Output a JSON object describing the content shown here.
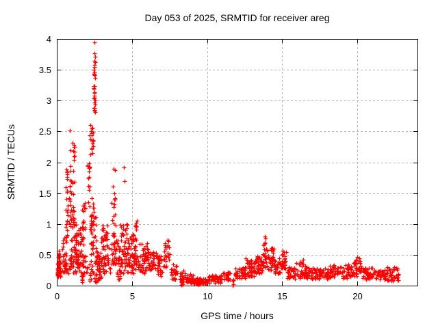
{
  "chart_data": {
    "type": "scatter",
    "title": "Day 053 of 2025, SRMTID for receiver areg",
    "xlabel": "GPS time / hours",
    "ylabel": "SRMTID / TECUs",
    "xlim": [
      0,
      24
    ],
    "ylim": [
      0,
      4
    ],
    "xticks": [
      {
        "v": 0,
        "label": "0"
      },
      {
        "v": 5,
        "label": "5"
      },
      {
        "v": 10,
        "label": "10"
      },
      {
        "v": 15,
        "label": "15"
      },
      {
        "v": 20,
        "label": "20"
      }
    ],
    "yticks": [
      {
        "v": 0,
        "label": "0"
      },
      {
        "v": 0.5,
        "label": "0.5"
      },
      {
        "v": 1,
        "label": "1"
      },
      {
        "v": 1.5,
        "label": "1.5"
      },
      {
        "v": 2,
        "label": "2"
      },
      {
        "v": 2.5,
        "label": "2.5"
      },
      {
        "v": 3,
        "label": "3"
      },
      {
        "v": 3.5,
        "label": "3.5"
      },
      {
        "v": 4,
        "label": "4"
      }
    ],
    "grid": true,
    "legend": false,
    "marker": {
      "shape": "plus",
      "color": "#ff0000",
      "size": 7
    },
    "colors": {
      "points": "#ff0000",
      "grid": "#b4b4b4",
      "axis": "#000000",
      "background": "#ffffff"
    },
    "data_x_end": 22.8,
    "feature_points": [
      [
        2.52,
        3.95
      ],
      [
        2.5,
        3.77
      ],
      [
        2.53,
        3.71
      ],
      [
        2.49,
        3.65
      ],
      [
        2.54,
        3.62
      ],
      [
        2.5,
        3.58
      ],
      [
        2.47,
        3.5
      ],
      [
        2.52,
        3.46
      ],
      [
        2.5,
        3.41
      ],
      [
        2.55,
        3.37
      ],
      [
        2.45,
        3.2
      ],
      [
        2.5,
        3.14
      ],
      [
        2.52,
        3.08
      ],
      [
        2.48,
        3.04
      ],
      [
        2.55,
        3.0
      ],
      [
        2.5,
        2.97
      ],
      [
        2.53,
        2.94
      ],
      [
        2.46,
        2.88
      ],
      [
        2.5,
        2.84
      ],
      [
        2.56,
        2.81
      ],
      [
        0.87,
        2.52
      ],
      [
        1.05,
        2.32
      ],
      [
        1.12,
        2.25
      ],
      [
        1.08,
        2.18
      ],
      [
        1.18,
        2.1
      ],
      [
        2.22,
        2.6
      ],
      [
        2.3,
        2.55
      ],
      [
        2.27,
        2.5
      ],
      [
        2.33,
        2.44
      ],
      [
        2.25,
        2.37
      ],
      [
        2.35,
        2.3
      ],
      [
        2.3,
        2.22
      ],
      [
        2.38,
        2.15
      ],
      [
        2.12,
        1.98
      ],
      [
        2.18,
        1.92
      ],
      [
        2.15,
        1.85
      ],
      [
        3.78,
        1.9
      ],
      [
        3.85,
        1.87
      ],
      [
        4.48,
        1.92
      ],
      [
        4.52,
        1.7
      ],
      [
        0.65,
        1.88
      ],
      [
        0.68,
        1.76
      ],
      [
        13.85,
        0.8
      ],
      [
        13.9,
        0.77
      ],
      [
        15.05,
        0.57
      ],
      [
        20.0,
        0.47
      ],
      [
        7.4,
        0.74
      ],
      [
        16.4,
        0.42
      ],
      [
        12.55,
        0.44
      ],
      [
        5.35,
        1.05
      ]
    ],
    "clusters": [
      {
        "x": 0.12,
        "dx": 0.1,
        "y0": 0.14,
        "y1": 0.4,
        "n": 40,
        "bias": 1.2
      },
      {
        "x": 0.18,
        "dx": 0.08,
        "y0": 0.4,
        "y1": 0.58,
        "n": 10,
        "bias": 1
      },
      {
        "x": 0.5,
        "dx": 0.15,
        "y0": 0.22,
        "y1": 0.8,
        "n": 30,
        "bias": 1.5
      },
      {
        "x": 0.65,
        "dx": 0.07,
        "y0": 0.8,
        "y1": 1.9,
        "n": 20,
        "bias": 1.1
      },
      {
        "x": 0.9,
        "dx": 0.08,
        "y0": 0.9,
        "y1": 1.55,
        "n": 12,
        "bias": 1
      },
      {
        "x": 0.92,
        "dx": 0.06,
        "y0": 1.6,
        "y1": 2.2,
        "n": 7,
        "bias": 1
      },
      {
        "x": 1.12,
        "dx": 0.08,
        "y0": 1.2,
        "y1": 2.3,
        "n": 14,
        "bias": 1.2
      },
      {
        "x": 1.15,
        "dx": 0.2,
        "y0": 0.35,
        "y1": 1.15,
        "n": 45,
        "bias": 1.6
      },
      {
        "x": 1.55,
        "dx": 0.25,
        "y0": 0.3,
        "y1": 0.95,
        "n": 50,
        "bias": 1.5
      },
      {
        "x": 1.7,
        "dx": 0.1,
        "y0": 0.05,
        "y1": 0.22,
        "n": 10,
        "bias": 1
      },
      {
        "x": 1.8,
        "dx": 0.12,
        "y0": 0.9,
        "y1": 1.35,
        "n": 14,
        "bias": 1.2
      },
      {
        "x": 2.1,
        "dx": 0.1,
        "y0": 1.35,
        "y1": 2.0,
        "n": 10,
        "bias": 1
      },
      {
        "x": 2.2,
        "dx": 0.08,
        "y0": 0.08,
        "y1": 0.22,
        "n": 6,
        "bias": 1
      },
      {
        "x": 2.3,
        "dx": 0.12,
        "y0": 2.05,
        "y1": 2.62,
        "n": 11,
        "bias": 1
      },
      {
        "x": 2.3,
        "dx": 0.15,
        "y0": 0.9,
        "y1": 1.45,
        "n": 16,
        "bias": 1.2
      },
      {
        "x": 2.5,
        "dx": 0.05,
        "y0": 2.8,
        "y1": 3.55,
        "n": 10,
        "bias": 1
      },
      {
        "x": 2.45,
        "dx": 0.2,
        "y0": 0.5,
        "y1": 1.2,
        "n": 28,
        "bias": 1.4
      },
      {
        "x": 2.75,
        "dx": 0.2,
        "y0": 0.15,
        "y1": 0.55,
        "n": 30,
        "bias": 1.2
      },
      {
        "x": 2.8,
        "dx": 0.3,
        "y0": 0.05,
        "y1": 0.15,
        "n": 12,
        "bias": 1
      },
      {
        "x": 3.2,
        "dx": 0.25,
        "y0": 0.35,
        "y1": 1.0,
        "n": 45,
        "bias": 1.5
      },
      {
        "x": 3.8,
        "dx": 0.15,
        "y0": 0.95,
        "y1": 1.7,
        "n": 13,
        "bias": 1.1
      },
      {
        "x": 3.9,
        "dx": 0.3,
        "y0": 0.35,
        "y1": 0.9,
        "n": 40,
        "bias": 1.4
      },
      {
        "x": 4.15,
        "dx": 0.12,
        "y0": 0.07,
        "y1": 0.25,
        "n": 8,
        "bias": 1
      },
      {
        "x": 4.5,
        "dx": 0.25,
        "y0": 0.35,
        "y1": 1.0,
        "n": 40,
        "bias": 1.4
      },
      {
        "x": 5.0,
        "dx": 0.3,
        "y0": 0.3,
        "y1": 0.85,
        "n": 45,
        "bias": 1.3
      },
      {
        "x": 5.35,
        "dx": 0.12,
        "y0": 0.9,
        "y1": 1.05,
        "n": 6,
        "bias": 1
      },
      {
        "x": 5.8,
        "dx": 0.3,
        "y0": 0.2,
        "y1": 0.7,
        "n": 40,
        "bias": 1.3
      },
      {
        "x": 6.3,
        "dx": 0.3,
        "y0": 0.2,
        "y1": 0.55,
        "n": 35,
        "bias": 1.2
      },
      {
        "x": 6.9,
        "dx": 0.25,
        "y0": 0.15,
        "y1": 0.5,
        "n": 30,
        "bias": 1.2
      },
      {
        "x": 7.35,
        "dx": 0.2,
        "y0": 0.3,
        "y1": 0.72,
        "n": 22,
        "bias": 1.3
      },
      {
        "x": 7.8,
        "dx": 0.2,
        "y0": 0.1,
        "y1": 0.38,
        "n": 25,
        "bias": 1.2
      },
      {
        "x": 8.3,
        "dx": 0.15,
        "y0": 0.05,
        "y1": 0.32,
        "n": 18,
        "bias": 1.3
      },
      {
        "x": 8.32,
        "dx": 0.05,
        "y0": 0.01,
        "y1": 0.06,
        "n": 8,
        "bias": 1
      },
      {
        "x": 8.8,
        "dx": 0.3,
        "y0": 0.04,
        "y1": 0.2,
        "n": 30,
        "bias": 1.2
      },
      {
        "x": 9.5,
        "dx": 0.45,
        "y0": 0.02,
        "y1": 0.12,
        "n": 55,
        "bias": 1
      },
      {
        "x": 10.5,
        "dx": 0.45,
        "y0": 0.04,
        "y1": 0.18,
        "n": 50,
        "bias": 1
      },
      {
        "x": 11.3,
        "dx": 0.25,
        "y0": 0.08,
        "y1": 0.22,
        "n": 25,
        "bias": 1
      },
      {
        "x": 11.72,
        "dx": 0.05,
        "y0": 0.0,
        "y1": 0.1,
        "n": 6,
        "bias": 1
      },
      {
        "x": 12.2,
        "dx": 0.35,
        "y0": 0.12,
        "y1": 0.3,
        "n": 40,
        "bias": 1.1
      },
      {
        "x": 12.9,
        "dx": 0.3,
        "y0": 0.15,
        "y1": 0.42,
        "n": 40,
        "bias": 1.2
      },
      {
        "x": 13.4,
        "dx": 0.25,
        "y0": 0.2,
        "y1": 0.5,
        "n": 40,
        "bias": 1.2
      },
      {
        "x": 13.85,
        "dx": 0.15,
        "y0": 0.3,
        "y1": 0.78,
        "n": 28,
        "bias": 1.2
      },
      {
        "x": 14.25,
        "dx": 0.2,
        "y0": 0.25,
        "y1": 0.62,
        "n": 30,
        "bias": 1.3
      },
      {
        "x": 14.7,
        "dx": 0.25,
        "y0": 0.2,
        "y1": 0.45,
        "n": 35,
        "bias": 1.2
      },
      {
        "x": 15.1,
        "dx": 0.15,
        "y0": 0.28,
        "y1": 0.55,
        "n": 25,
        "bias": 1.1
      },
      {
        "x": 15.6,
        "dx": 0.3,
        "y0": 0.1,
        "y1": 0.3,
        "n": 35,
        "bias": 1.1
      },
      {
        "x": 16.25,
        "dx": 0.3,
        "y0": 0.12,
        "y1": 0.4,
        "n": 35,
        "bias": 1.3
      },
      {
        "x": 16.9,
        "dx": 0.35,
        "y0": 0.1,
        "y1": 0.3,
        "n": 40,
        "bias": 1.1
      },
      {
        "x": 17.7,
        "dx": 0.45,
        "y0": 0.1,
        "y1": 0.28,
        "n": 45,
        "bias": 1.1
      },
      {
        "x": 18.5,
        "dx": 0.35,
        "y0": 0.12,
        "y1": 0.33,
        "n": 40,
        "bias": 1.1
      },
      {
        "x": 19.3,
        "dx": 0.35,
        "y0": 0.12,
        "y1": 0.35,
        "n": 40,
        "bias": 1.2
      },
      {
        "x": 20.0,
        "dx": 0.3,
        "y0": 0.15,
        "y1": 0.45,
        "n": 40,
        "bias": 1.3
      },
      {
        "x": 20.7,
        "dx": 0.35,
        "y0": 0.1,
        "y1": 0.3,
        "n": 40,
        "bias": 1.1
      },
      {
        "x": 21.5,
        "dx": 0.4,
        "y0": 0.1,
        "y1": 0.28,
        "n": 42,
        "bias": 1.1
      },
      {
        "x": 22.35,
        "dx": 0.42,
        "y0": 0.08,
        "y1": 0.3,
        "n": 45,
        "bias": 1.2
      },
      {
        "x": 3.0,
        "dx": 2.9,
        "y0": 0.2,
        "y1": 0.5,
        "n": 120,
        "bias": 1.3
      }
    ]
  }
}
